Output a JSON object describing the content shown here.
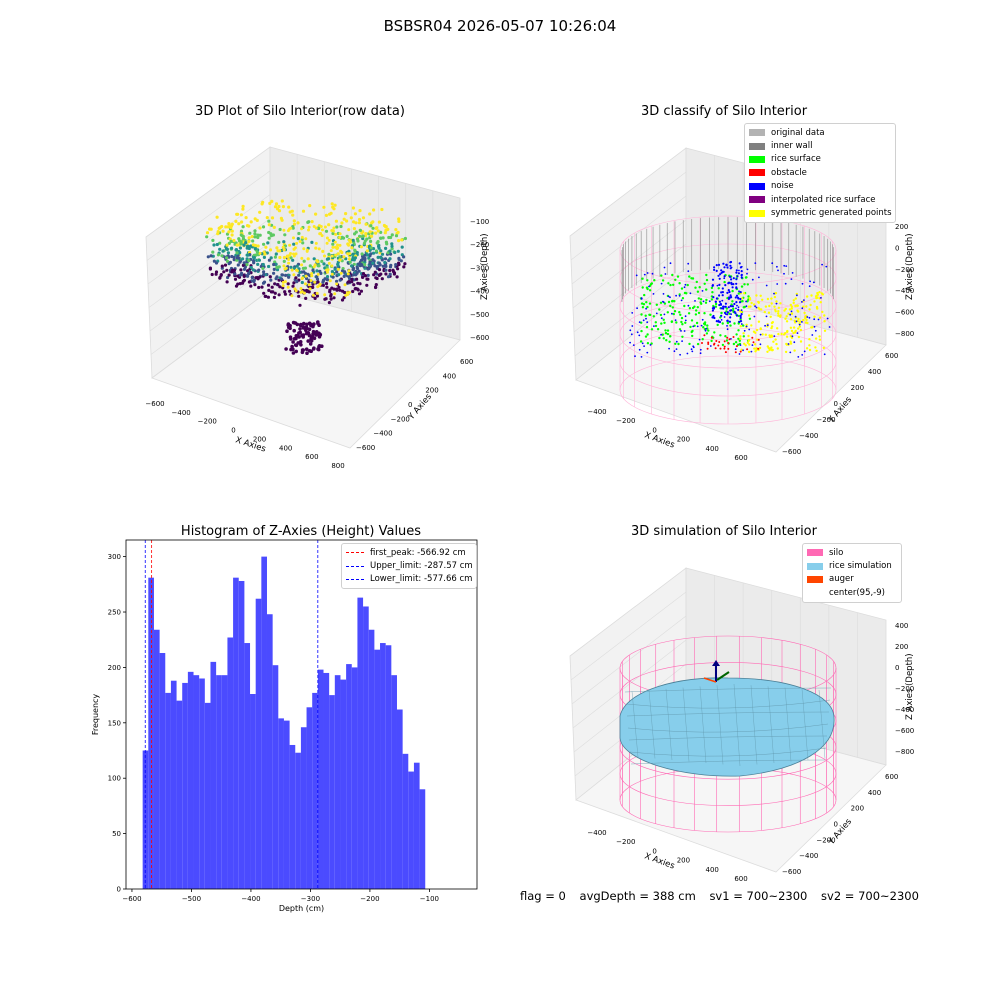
{
  "suptitle": "BSBSR04 2026-05-07 10:26:04",
  "panels": {
    "raw": {
      "title": "3D Plot of Silo Interior(row data)",
      "xlabel": "X Axies",
      "ylabel": "Y Axies",
      "zlabel": "Z Axies (Depth)",
      "xticks": [
        "−600",
        "−400",
        "−200",
        "0",
        "200",
        "400",
        "600",
        "800"
      ],
      "yticks": [
        "600",
        "400",
        "200",
        "0",
        "−200",
        "−400",
        "−600"
      ],
      "zticks": [
        "−100",
        "−200",
        "−300",
        "−400",
        "−500",
        "−600"
      ],
      "colormap": [
        "#fde725",
        "#5ec962",
        "#21918c",
        "#3b528b",
        "#440154"
      ]
    },
    "classify": {
      "title": "3D classify of Silo Interior",
      "xlabel": "X Axies",
      "ylabel": "Y Axies",
      "zlabel": "Z Axies (Depth)",
      "xticks": [
        "−400",
        "−200",
        "0",
        "200",
        "400",
        "600"
      ],
      "yticks": [
        "600",
        "400",
        "200",
        "0",
        "−200",
        "−400",
        "−600"
      ],
      "zticks": [
        "200",
        "0",
        "−200",
        "−400",
        "−600",
        "−800"
      ],
      "legend": [
        {
          "label": "original data",
          "color": "#b3b3b3"
        },
        {
          "label": "inner wall",
          "color": "#808080"
        },
        {
          "label": "rice surface",
          "color": "#00ff00"
        },
        {
          "label": "obstacle",
          "color": "#ff0000"
        },
        {
          "label": "noise",
          "color": "#0000ff"
        },
        {
          "label": "interpolated rice surface",
          "color": "#800080"
        },
        {
          "label": "symmetric generated points",
          "color": "#ffff00"
        }
      ]
    },
    "simulation": {
      "title": "3D simulation of Silo Interior",
      "xlabel": "X Axies",
      "ylabel": "Y Axies",
      "zlabel": "Z Axies (Depth)",
      "xticks": [
        "−400",
        "−200",
        "0",
        "200",
        "400",
        "600"
      ],
      "yticks": [
        "600",
        "400",
        "200",
        "0",
        "−200",
        "−400",
        "−600"
      ],
      "zticks": [
        "400",
        "200",
        "0",
        "−200",
        "−400",
        "−600",
        "−800"
      ],
      "legend": [
        {
          "label": "silo",
          "color": "#ff69b4"
        },
        {
          "label": "rice simulation",
          "color": "#87ceeb"
        },
        {
          "label": "auger",
          "color": "#ff4500"
        },
        {
          "label": "center(95,-9)",
          "color": "#ffffff"
        }
      ]
    }
  },
  "status": {
    "flag": "flag = 0",
    "avg_depth": "avgDepth = 388 cm",
    "sv1": "sv1 = 700~2300",
    "sv2": "sv2 = 700~2300"
  },
  "chart_data": [
    {
      "type": "bar",
      "title": "Histogram of Z-Axies (Height) Values",
      "xlabel": "Depth (cm)",
      "ylabel": "Frequency",
      "xlim": [
        -610,
        -20
      ],
      "ylim": [
        0,
        315
      ],
      "xticks": [
        -600,
        -500,
        -400,
        -300,
        -200,
        -100
      ],
      "xtick_labels": [
        "−600",
        "−500",
        "−400",
        "−300",
        "−200",
        "−100"
      ],
      "yticks": [
        0,
        50,
        100,
        150,
        200,
        250,
        300
      ],
      "bar_color": "#4b4bff",
      "bin_start": -582,
      "bin_width": 9.5,
      "values": [
        125,
        281,
        234,
        213,
        177,
        188,
        170,
        186,
        196,
        193,
        190,
        168,
        205,
        193,
        193,
        227,
        281,
        278,
        222,
        176,
        262,
        300,
        248,
        202,
        154,
        152,
        130,
        123,
        146,
        164,
        177,
        198,
        195,
        175,
        193,
        189,
        203,
        200,
        263,
        255,
        234,
        216,
        222,
        220,
        193,
        162,
        122,
        106,
        114,
        90
      ],
      "lines": [
        {
          "name": "first_peak: -566.92 cm",
          "x": -566.92,
          "color": "#ff0000"
        },
        {
          "name": "Upper_limit: -287.57 cm",
          "x": -287.57,
          "color": "#0000ff"
        },
        {
          "name": "Lower_limit: -577.66 cm",
          "x": -577.66,
          "color": "#0000ff"
        }
      ]
    }
  ]
}
